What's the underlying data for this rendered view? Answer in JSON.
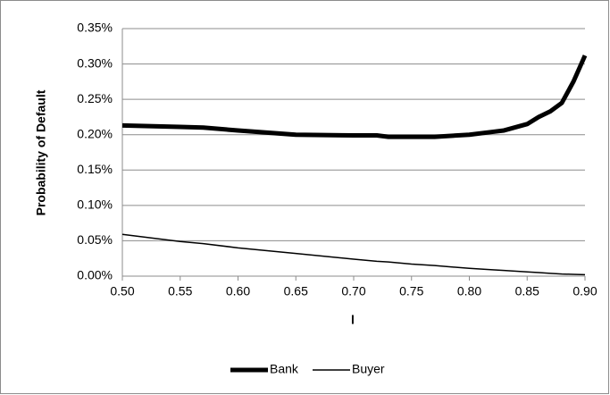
{
  "chart_data": {
    "type": "line",
    "x_label": "l",
    "y_label": "Probability of Default",
    "x": [
      0.5,
      0.55,
      0.57,
      0.6,
      0.65,
      0.7,
      0.72,
      0.73,
      0.75,
      0.77,
      0.8,
      0.82,
      0.83,
      0.85,
      0.86,
      0.87,
      0.88,
      0.89,
      0.9
    ],
    "series": [
      {
        "name": "Bank",
        "color": "#000000",
        "values": [
          0.213,
          0.211,
          0.21,
          0.206,
          0.2,
          0.199,
          0.199,
          0.197,
          0.197,
          0.197,
          0.2,
          0.204,
          0.206,
          0.215,
          0.225,
          0.233,
          0.245,
          0.275,
          0.312
        ]
      },
      {
        "name": "Buyer",
        "color": "#000000",
        "values": [
          0.059,
          0.049,
          0.046,
          0.04,
          0.032,
          0.024,
          0.021,
          0.02,
          0.017,
          0.015,
          0.011,
          0.009,
          0.008,
          0.006,
          0.005,
          0.004,
          0.003,
          0.0025,
          0.002
        ]
      }
    ],
    "xlim": [
      0.5,
      0.9
    ],
    "xticks": [
      {
        "value": 0.5,
        "label": "0.50"
      },
      {
        "value": 0.55,
        "label": "0.55"
      },
      {
        "value": 0.6,
        "label": "0.60"
      },
      {
        "value": 0.65,
        "label": "0.65"
      },
      {
        "value": 0.7,
        "label": "0.70"
      },
      {
        "value": 0.75,
        "label": "0.75"
      },
      {
        "value": 0.8,
        "label": "0.80"
      },
      {
        "value": 0.85,
        "label": "0.85"
      },
      {
        "value": 0.9,
        "label": "0.90"
      }
    ],
    "ylim": [
      0,
      0.35
    ],
    "yticks": [
      {
        "value": 0,
        "label": "0.00%"
      },
      {
        "value": 0.05,
        "label": "0.05%"
      },
      {
        "value": 0.1,
        "label": "0.10%"
      },
      {
        "value": 0.15,
        "label": "0.15%"
      },
      {
        "value": 0.2,
        "label": "0.20%"
      },
      {
        "value": 0.25,
        "label": "0.25%"
      },
      {
        "value": 0.3,
        "label": "0.30%"
      },
      {
        "value": 0.35,
        "label": "0.35%"
      }
    ],
    "grid": true,
    "legend": "bottom"
  }
}
